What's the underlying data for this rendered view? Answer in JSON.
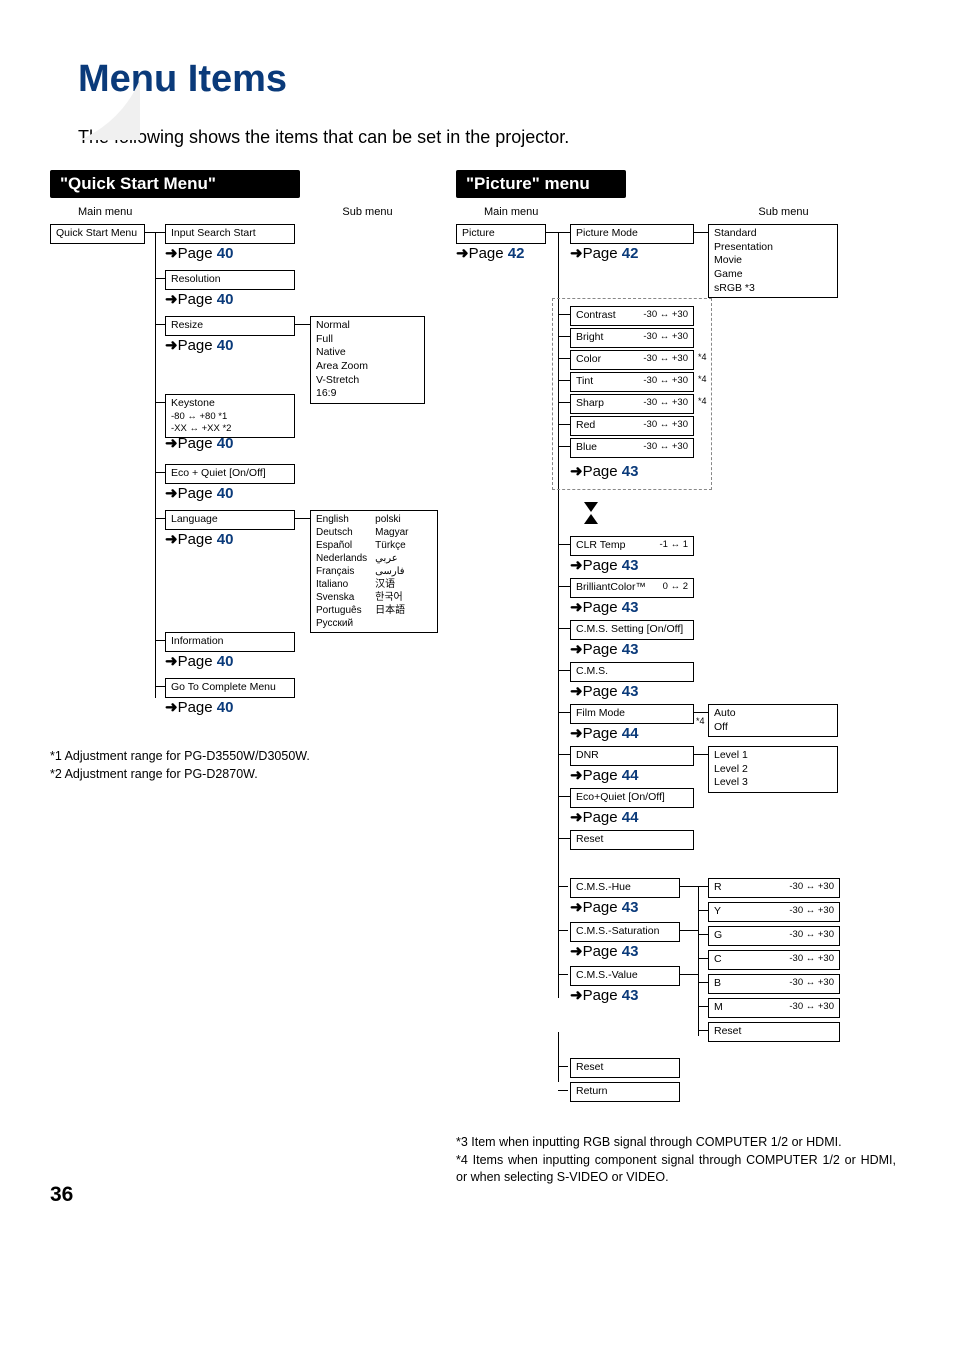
{
  "title": "Menu Items",
  "intro": "The following shows the items that can be set in the projector.",
  "pageNumber": "36",
  "left": {
    "header": "\"Quick Start Menu\"",
    "mainLabel": "Main menu",
    "subLabel": "Sub menu",
    "root": "Quick Start Menu",
    "items": [
      {
        "label": "Input Search Start",
        "page": "40"
      },
      {
        "label": "Resolution",
        "page": "40"
      },
      {
        "label": "Resize",
        "page": "40",
        "sub": "Normal\nFull\nNative\nArea Zoom\nV-Stretch\n16:9"
      },
      {
        "label": "Keystone",
        "extra": "-80 ↔ +80 *1\n-XX ↔ +XX *2",
        "page": "40"
      },
      {
        "label": "Eco + Quiet [On/Off]",
        "page": "40"
      },
      {
        "label": "Language",
        "page": "40",
        "subCols": {
          "c1": "English\nDeutsch\nEspañol\nNederlands\nFrançais\nItaliano\nSvenska\nPortuguês\nРусский",
          "c2": "polski\nMagyar\nTürkçe\nعربي\nفارسی\n汉语\n한국어\n日本語"
        }
      },
      {
        "label": "Information",
        "page": "40"
      },
      {
        "label": "Go To Complete Menu",
        "page": "40"
      }
    ],
    "notes": "*1 Adjustment range for PG-D3550W/D3050W.\n*2 Adjustment range for PG-D2870W."
  },
  "right": {
    "header": "\"Picture\" menu",
    "mainLabel": "Main menu",
    "subLabel": "Sub menu",
    "root": "Picture",
    "rootPage": "42",
    "mode": {
      "label": "Picture Mode",
      "page": "42",
      "sub": "Standard\nPresentation\nMovie\nGame\nsRGB *3"
    },
    "adjust": [
      {
        "label": "Contrast",
        "range": "-30 ↔ +30"
      },
      {
        "label": "Bright",
        "range": "-30 ↔ +30"
      },
      {
        "label": "Color",
        "range": "-30 ↔ +30",
        "sup": "*4"
      },
      {
        "label": "Tint",
        "range": "-30 ↔ +30",
        "sup": "*4"
      },
      {
        "label": "Sharp",
        "range": "-30 ↔ +30",
        "sup": "*4"
      },
      {
        "label": "Red",
        "range": "-30 ↔ +30"
      },
      {
        "label": "Blue",
        "range": "-30 ↔ +30"
      }
    ],
    "adjustPage": "43",
    "clrTemp": {
      "label": "CLR Temp",
      "range": "-1 ↔ 1",
      "page": "43"
    },
    "brilliant": {
      "label": "BrilliantColor™",
      "range": "0 ↔ 2",
      "page": "43"
    },
    "cmsSetting": {
      "label": "C.M.S. Setting [On/Off]",
      "page": "43"
    },
    "cms": {
      "label": "C.M.S.",
      "page": "43"
    },
    "film": {
      "label": "Film Mode",
      "page": "44",
      "sub": "Auto\nOff",
      "sup": "*4"
    },
    "dnr": {
      "label": "DNR",
      "page": "44",
      "sub": "Level 1\nLevel 2\nLevel 3"
    },
    "eco": {
      "label": "Eco+Quiet [On/Off]",
      "page": "44"
    },
    "reset": "Reset",
    "cmsHue": {
      "label": "C.M.S.-Hue",
      "page": "43"
    },
    "cmsSat": {
      "label": "C.M.S.-Saturation",
      "page": "43"
    },
    "cmsVal": {
      "label": "C.M.S.-Value",
      "page": "43"
    },
    "cmsColors": [
      {
        "l": "R",
        "r": "-30 ↔ +30"
      },
      {
        "l": "Y",
        "r": "-30 ↔ +30"
      },
      {
        "l": "G",
        "r": "-30 ↔ +30"
      },
      {
        "l": "C",
        "r": "-30 ↔ +30"
      },
      {
        "l": "B",
        "r": "-30 ↔ +30"
      },
      {
        "l": "M",
        "r": "-30 ↔ +30"
      }
    ],
    "cmsReset": "Reset",
    "reset2": "Reset",
    "return": "Return",
    "notes": "*3 Item when inputting RGB signal through COMPUTER 1/2 or HDMI.\n*4 Items when inputting component signal through COMPUTER 1/2 or HDMI, or when selecting S-VIDEO or VIDEO."
  }
}
